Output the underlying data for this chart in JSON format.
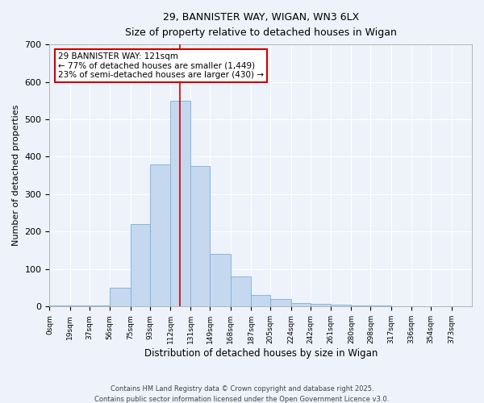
{
  "title1": "29, BANNISTER WAY, WIGAN, WN3 6LX",
  "title2": "Size of property relative to detached houses in Wigan",
  "xlabel": "Distribution of detached houses by size in Wigan",
  "ylabel": "Number of detached properties",
  "bar_color": "#c5d8f0",
  "bar_edge_color": "#7aafd4",
  "background_color": "#eef2fa",
  "grid_color": "#ffffff",
  "vline_x": 121,
  "vline_color": "#cc0000",
  "bin_edges": [
    0,
    19,
    37,
    56,
    75,
    93,
    112,
    131,
    149,
    168,
    187,
    205,
    224,
    242,
    261,
    280,
    298,
    317,
    336,
    354,
    373,
    392
  ],
  "bar_heights": [
    2,
    2,
    2,
    50,
    220,
    380,
    550,
    375,
    140,
    80,
    30,
    20,
    10,
    8,
    5,
    3,
    2,
    1,
    1,
    1,
    1
  ],
  "tick_labels": [
    "0sqm",
    "19sqm",
    "37sqm",
    "56sqm",
    "75sqm",
    "93sqm",
    "112sqm",
    "131sqm",
    "149sqm",
    "168sqm",
    "187sqm",
    "205sqm",
    "224sqm",
    "242sqm",
    "261sqm",
    "280sqm",
    "298sqm",
    "317sqm",
    "336sqm",
    "354sqm",
    "373sqm"
  ],
  "ylim": [
    0,
    700
  ],
  "yticks": [
    0,
    100,
    200,
    300,
    400,
    500,
    600,
    700
  ],
  "annotation_title": "29 BANNISTER WAY: 121sqm",
  "annotation_line1": "← 77% of detached houses are smaller (1,449)",
  "annotation_line2": "23% of semi-detached houses are larger (430) →",
  "annotation_box_color": "#ffffff",
  "annotation_edge_color": "#cc0000",
  "footer1": "Contains HM Land Registry data © Crown copyright and database right 2025.",
  "footer2": "Contains public sector information licensed under the Open Government Licence v3.0."
}
